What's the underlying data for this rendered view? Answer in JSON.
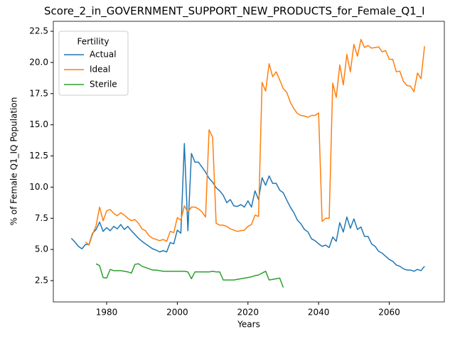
{
  "chart_data": {
    "type": "line",
    "title": "Score_2_in_GOVERNMENT_SUPPORT_NEW_PRODUCTS_for_Female_Q1_I",
    "xlabel": "Years",
    "ylabel": "% of Female Q1_IQ Population",
    "legend_title": "Fertility",
    "legend": "upper left",
    "grid": false,
    "xlim": [
      1964.9,
      2075.6
    ],
    "ylim": [
      0.79,
      23.3
    ],
    "xticks": [
      1980,
      2000,
      2020,
      2040,
      2060
    ],
    "yticks": [
      2.5,
      {
        "value": 5,
        "label": "5.0"
      },
      7.5,
      {
        "value": 10,
        "label": "10.0"
      },
      12.5,
      {
        "value": 15,
        "label": "15.0"
      },
      17.5,
      {
        "value": 20,
        "label": "20.0"
      },
      22.5
    ],
    "x": [
      1970,
      1971,
      1972,
      1973,
      1974,
      1975,
      1976,
      1977,
      1978,
      1979,
      1980,
      1981,
      1982,
      1983,
      1984,
      1985,
      1986,
      1987,
      1988,
      1989,
      1990,
      1991,
      1992,
      1993,
      1994,
      1995,
      1996,
      1997,
      1998,
      1999,
      2000,
      2001,
      2002,
      2003,
      2004,
      2005,
      2006,
      2007,
      2008,
      2009,
      2010,
      2011,
      2012,
      2013,
      2014,
      2015,
      2016,
      2017,
      2018,
      2019,
      2020,
      2021,
      2022,
      2023,
      2024,
      2025,
      2026,
      2027,
      2028,
      2029,
      2030,
      2031,
      2032,
      2033,
      2034,
      2035,
      2036,
      2037,
      2038,
      2039,
      2040,
      2041,
      2042,
      2043,
      2044,
      2045,
      2046,
      2047,
      2048,
      2049,
      2050,
      2051,
      2052,
      2053,
      2054,
      2055,
      2056,
      2057,
      2058,
      2059,
      2060,
      2061,
      2062,
      2063,
      2064,
      2065,
      2066,
      2067,
      2068,
      2069,
      2070
    ],
    "series": [
      {
        "name": "Actual",
        "color": "#1f77b4",
        "values": [
          5.9,
          5.6,
          5.25,
          5.05,
          5.4,
          5.4,
          6.3,
          6.6,
          7.2,
          6.45,
          6.75,
          6.5,
          6.85,
          6.65,
          7.0,
          6.6,
          6.85,
          6.5,
          6.2,
          5.9,
          5.65,
          5.45,
          5.25,
          5.05,
          4.95,
          4.8,
          4.9,
          4.8,
          5.55,
          5.45,
          6.55,
          6.3,
          13.5,
          6.5,
          12.7,
          12.0,
          12.0,
          11.6,
          11.2,
          10.7,
          10.4,
          9.95,
          9.7,
          9.35,
          8.75,
          9.0,
          8.5,
          8.45,
          8.6,
          8.4,
          8.9,
          8.4,
          9.7,
          9.0,
          10.75,
          10.15,
          10.9,
          10.3,
          10.3,
          9.75,
          9.55,
          8.95,
          8.4,
          7.95,
          7.35,
          7.05,
          6.6,
          6.4,
          5.85,
          5.7,
          5.45,
          5.25,
          5.35,
          5.15,
          6.0,
          5.65,
          7.15,
          6.4,
          7.6,
          6.7,
          7.45,
          6.6,
          6.8,
          6.05,
          6.05,
          5.45,
          5.25,
          4.85,
          4.7,
          4.45,
          4.2,
          4.05,
          3.75,
          3.65,
          3.45,
          3.35,
          3.35,
          3.25,
          3.4,
          3.3,
          3.65
        ]
      },
      {
        "name": "Ideal",
        "color": "#ff7f0e",
        "values": [
          null,
          null,
          null,
          null,
          5.6,
          5.35,
          6.2,
          6.9,
          8.4,
          7.3,
          8.1,
          8.2,
          7.9,
          7.7,
          7.95,
          7.75,
          7.5,
          7.3,
          7.4,
          7.1,
          6.65,
          6.5,
          6.1,
          5.9,
          5.8,
          5.7,
          5.8,
          5.65,
          6.45,
          6.35,
          7.55,
          7.35,
          8.5,
          8.0,
          8.4,
          8.4,
          8.25,
          8.0,
          7.6,
          14.6,
          14.0,
          7.1,
          6.95,
          6.95,
          6.85,
          6.65,
          6.55,
          6.45,
          6.5,
          6.55,
          6.85,
          7.0,
          7.75,
          7.65,
          18.4,
          17.7,
          19.9,
          18.85,
          19.25,
          18.6,
          17.9,
          17.6,
          16.8,
          16.3,
          15.9,
          15.75,
          15.7,
          15.6,
          15.75,
          15.75,
          15.95,
          7.25,
          7.5,
          7.5,
          18.35,
          17.2,
          19.8,
          18.2,
          20.65,
          19.25,
          21.45,
          20.5,
          21.85,
          21.2,
          21.35,
          21.15,
          21.2,
          21.25,
          20.85,
          20.95,
          20.25,
          20.25,
          19.25,
          19.3,
          18.5,
          18.15,
          18.1,
          17.65,
          19.15,
          18.7,
          21.3
        ]
      },
      {
        "name": "Sterile",
        "color": "#2ca02c",
        "values": [
          null,
          null,
          null,
          null,
          null,
          null,
          null,
          3.85,
          3.7,
          2.75,
          2.7,
          3.4,
          3.3,
          3.3,
          3.3,
          3.25,
          3.2,
          3.1,
          3.8,
          3.85,
          3.65,
          3.55,
          3.45,
          3.35,
          3.35,
          3.3,
          3.25,
          3.25,
          3.25,
          3.25,
          3.25,
          3.25,
          3.25,
          3.2,
          2.65,
          3.2,
          3.2,
          3.2,
          3.2,
          3.2,
          3.25,
          3.2,
          3.2,
          2.55,
          2.55,
          2.55,
          2.55,
          2.6,
          2.65,
          2.7,
          2.75,
          2.8,
          2.9,
          2.95,
          3.1,
          3.25,
          2.55,
          2.6,
          2.65,
          2.7,
          1.95,
          null,
          null,
          null,
          null,
          null,
          null,
          null,
          null,
          null,
          null,
          null,
          null,
          null,
          null,
          null,
          null,
          null,
          null,
          null,
          null,
          null,
          null,
          null,
          null,
          null,
          null,
          null,
          null,
          null,
          null,
          null,
          null,
          null,
          null,
          null,
          null,
          null,
          null,
          null,
          null
        ]
      }
    ]
  }
}
